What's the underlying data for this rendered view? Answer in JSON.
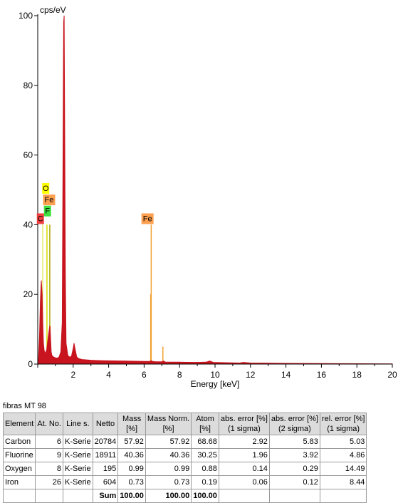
{
  "chart_data": {
    "type": "line",
    "ylabel": "cps/eV",
    "xlabel": "Energy [keV]",
    "xlim": [
      0,
      20
    ],
    "ylim": [
      0,
      100
    ],
    "xticks": [
      2,
      4,
      6,
      8,
      10,
      12,
      14,
      16,
      18,
      20
    ],
    "yticks": [
      0,
      20,
      40,
      60,
      80,
      100
    ],
    "spectrum": {
      "color": "#c8141e",
      "x": [
        0.02,
        0.05,
        0.1,
        0.15,
        0.2,
        0.25,
        0.28,
        0.32,
        0.36,
        0.4,
        0.5,
        0.6,
        0.68,
        0.72,
        0.76,
        0.8,
        0.9,
        1.0,
        1.1,
        1.2,
        1.3,
        1.38,
        1.42,
        1.46,
        1.49,
        1.52,
        1.56,
        1.6,
        1.7,
        1.8,
        1.9,
        2.0,
        2.05,
        2.1,
        2.2,
        2.3,
        2.5,
        3.0,
        3.5,
        4.0,
        5.0,
        6.0,
        6.35,
        6.4,
        6.45,
        6.6,
        7.0,
        7.1,
        7.2,
        8.0,
        9.0,
        9.5,
        9.7,
        9.9,
        10.5,
        11.4,
        11.6,
        12.0,
        14.0,
        16.0,
        18.0,
        20.0
      ],
      "y": [
        0,
        2,
        8,
        18,
        24,
        20,
        12,
        6,
        4,
        3,
        4,
        8,
        11,
        8,
        3.5,
        2.5,
        2.0,
        1.8,
        1.7,
        2.0,
        3.5,
        12,
        55,
        98,
        100,
        70,
        25,
        6,
        2.5,
        2.0,
        2.2,
        4.5,
        6,
        4.5,
        2.0,
        1.6,
        1.3,
        1.1,
        1.0,
        0.95,
        0.85,
        0.75,
        0.8,
        1.0,
        0.8,
        0.7,
        0.65,
        0.85,
        0.6,
        0.55,
        0.5,
        0.55,
        0.9,
        0.5,
        0.4,
        0.3,
        0.5,
        0.3,
        0.2,
        0.15,
        0.1,
        0.05
      ]
    },
    "element_lines": [
      {
        "element": "C",
        "x": 0.28,
        "height": 40,
        "color": "#e8e870"
      },
      {
        "element": "O",
        "x": 0.52,
        "height": 40,
        "color": "#d8d800"
      },
      {
        "element": "F",
        "x": 0.68,
        "height": 40,
        "color": "#a8a800"
      },
      {
        "element": "Fe",
        "x": 0.7,
        "height": 11,
        "color": "#e88820"
      },
      {
        "element": "Fe",
        "x": 0.72,
        "height": 6,
        "color": "#e88820"
      },
      {
        "element": "Fe",
        "x": 6.4,
        "height": 40,
        "color": "#f0a030"
      },
      {
        "element": "Fe",
        "x": 6.37,
        "height": 20,
        "color": "#f0a030"
      },
      {
        "element": "Fe",
        "x": 7.06,
        "height": 5,
        "color": "#f0a030"
      }
    ],
    "labels": [
      {
        "text": "O",
        "x": 0.25,
        "y": 49.5,
        "color": "#ffff00"
      },
      {
        "text": "Fe",
        "x": 0.3,
        "y": 46.2,
        "color": "#ffa050"
      },
      {
        "text": "F",
        "x": 0.35,
        "y": 43.0,
        "color": "#40e040"
      },
      {
        "text": "C",
        "x": -0.05,
        "y": 40.8,
        "color": "#f04040"
      },
      {
        "text": "Fe",
        "x": 5.85,
        "y": 40.8,
        "color": "#ffa050"
      }
    ]
  },
  "table": {
    "caption": "fibras MT 98",
    "headers": [
      "Element",
      "At. No.",
      "Line s.",
      "Netto",
      "Mass\n[%]",
      "Mass Norm.\n[%]",
      "Atom\n[%]",
      "abs. error [%]\n(1 sigma)",
      "abs. error [%]\n(2 sigma)",
      "rel. error [%]\n(1 sigma)"
    ],
    "rows": [
      [
        "Carbon",
        "6",
        "K-Serie",
        "20784",
        "57.92",
        "57.92",
        "68.68",
        "2.92",
        "5.83",
        "5.03"
      ],
      [
        "Fluorine",
        "9",
        "K-Serie",
        "18911",
        "40.36",
        "40.36",
        "30.25",
        "1.96",
        "3.92",
        "4.86"
      ],
      [
        "Oxygen",
        "8",
        "K-Serie",
        "195",
        "0.99",
        "0.99",
        "0.88",
        "0.14",
        "0.29",
        "14.49"
      ],
      [
        "Iron",
        "26",
        "K-Serie",
        "604",
        "0.73",
        "0.73",
        "0.19",
        "0.06",
        "0.12",
        "8.44"
      ]
    ],
    "sum_row": [
      "",
      "",
      "",
      "Sum",
      "100.00",
      "100.00",
      "100.00",
      "",
      "",
      ""
    ]
  }
}
